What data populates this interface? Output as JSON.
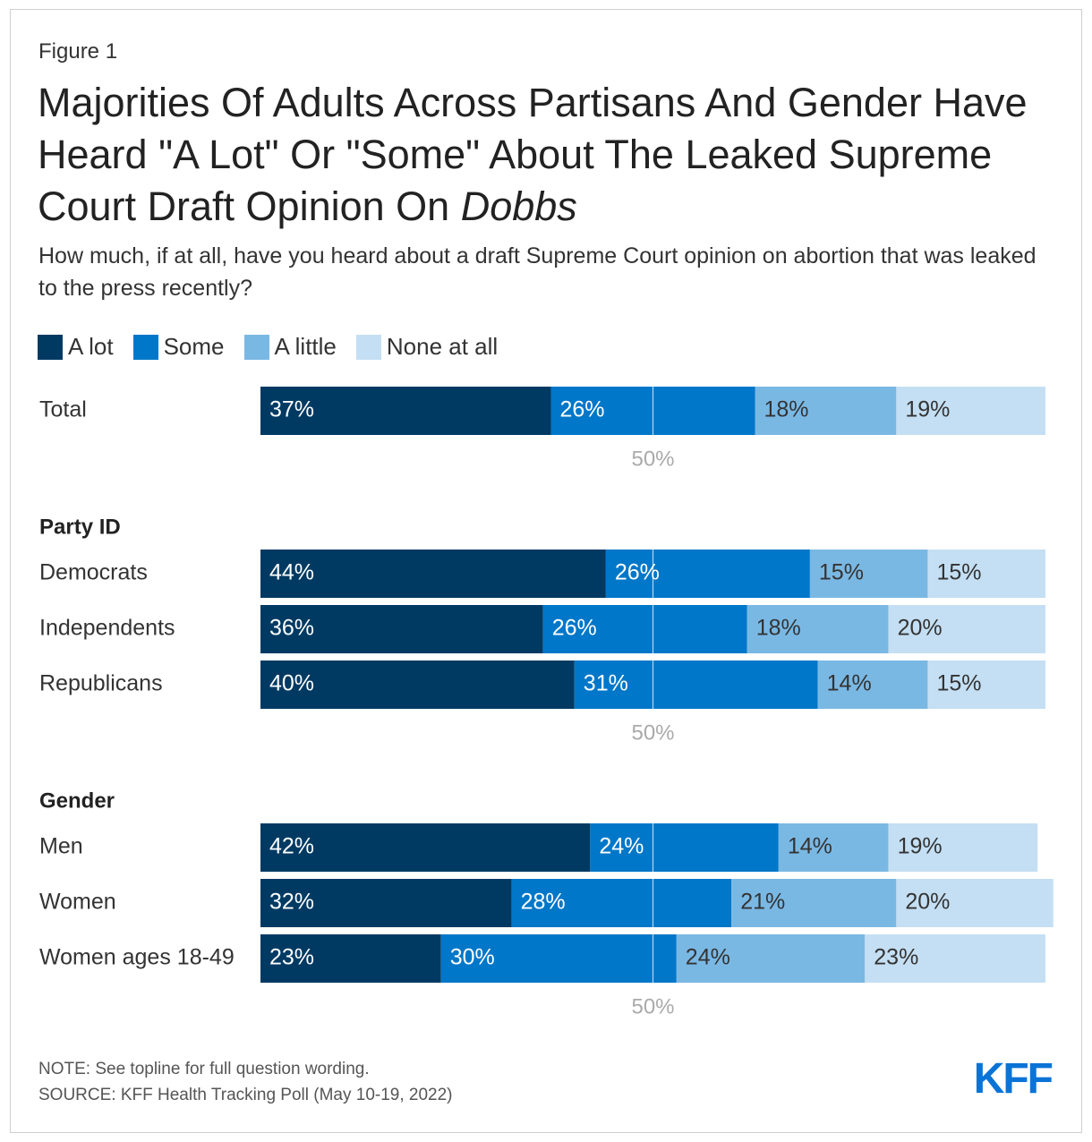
{
  "figure_label": "Figure 1",
  "title_main": "Majorities Of Adults Across Partisans And Gender Have Heard \"A Lot\" Or \"Some\" About The Leaked Supreme Court Draft Opinion On ",
  "title_italic": "Dobbs",
  "subtitle": "How much, if at all, have you heard about a draft Supreme Court opinion on abortion that was leaked to the press recently?",
  "colors": {
    "a_lot": "#003a63",
    "some": "#0077c8",
    "a_little": "#7ab8e4",
    "none_at_all": "#c4dff3"
  },
  "chart_data": {
    "type": "bar",
    "orientation": "horizontal",
    "stacked": true,
    "series_names": [
      "A lot",
      "Some",
      "A little",
      "None at all"
    ],
    "reference_line": {
      "value": 50,
      "label": "50%"
    },
    "xlim": [
      0,
      100
    ],
    "groups": [
      {
        "label": "",
        "rows": [
          {
            "category": "Total",
            "values": [
              37,
              26,
              18,
              19
            ]
          }
        ]
      },
      {
        "label": "Party ID",
        "rows": [
          {
            "category": "Democrats",
            "values": [
              44,
              26,
              15,
              15
            ]
          },
          {
            "category": "Independents",
            "values": [
              36,
              26,
              18,
              20
            ]
          },
          {
            "category": "Republicans",
            "values": [
              40,
              31,
              14,
              15
            ]
          }
        ]
      },
      {
        "label": "Gender",
        "rows": [
          {
            "category": "Men",
            "values": [
              42,
              24,
              14,
              19
            ]
          },
          {
            "category": "Women",
            "values": [
              32,
              28,
              21,
              20
            ]
          },
          {
            "category": "Women ages 18-49",
            "values": [
              23,
              30,
              24,
              23
            ]
          }
        ]
      }
    ]
  },
  "note": "NOTE: See topline for full question wording.",
  "source": "SOURCE: KFF Health Tracking Poll (May 10-19, 2022)",
  "logo_text": "KFF"
}
